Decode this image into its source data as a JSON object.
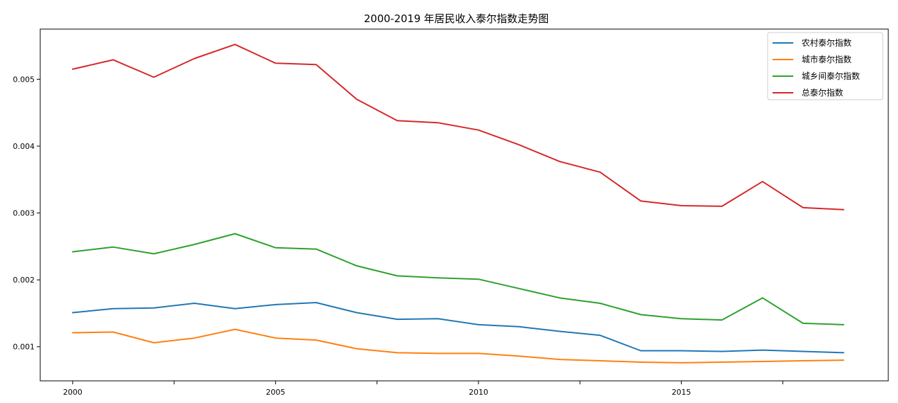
{
  "chart_data": {
    "type": "line",
    "title": "2000-2019 年居民收入泰尔指数走势图",
    "xlabel": "",
    "ylabel": "",
    "x": [
      2000,
      2001,
      2002,
      2003,
      2004,
      2005,
      2006,
      2007,
      2008,
      2009,
      2010,
      2011,
      2012,
      2013,
      2014,
      2015,
      2016,
      2017,
      2018,
      2019
    ],
    "xlim": [
      1999.2,
      2020.1
    ],
    "ylim": [
      0.00049,
      0.00575
    ],
    "xticks": [
      2000,
      2005,
      2010,
      2015
    ],
    "xtick_labels": [
      "2000",
      "2005",
      "2010",
      "2015"
    ],
    "xminor_ticks": [
      2002.5,
      2007.5,
      2012.5,
      2017.5
    ],
    "yticks": [
      0.001,
      0.002,
      0.003,
      0.004,
      0.005
    ],
    "ytick_labels": [
      "0.001",
      "0.002",
      "0.003",
      "0.004",
      "0.005"
    ],
    "grid": false,
    "legend_position": "top-right",
    "series": [
      {
        "name": "农村泰尔指数",
        "color": "#1f77b4",
        "values": [
          0.00151,
          0.00157,
          0.00158,
          0.00165,
          0.00157,
          0.00163,
          0.00166,
          0.00151,
          0.00141,
          0.00142,
          0.00133,
          0.0013,
          0.00123,
          0.00117,
          0.00094,
          0.00094,
          0.00093,
          0.00095,
          0.00093,
          0.00091
        ]
      },
      {
        "name": "城市泰尔指数",
        "color": "#ff7f0e",
        "values": [
          0.00121,
          0.00122,
          0.00106,
          0.00113,
          0.00126,
          0.00113,
          0.0011,
          0.00097,
          0.00091,
          0.0009,
          0.0009,
          0.00086,
          0.00081,
          0.00079,
          0.00077,
          0.00076,
          0.00077,
          0.00078,
          0.00079,
          0.0008
        ]
      },
      {
        "name": "城乡间泰尔指数",
        "color": "#2ca02c",
        "values": [
          0.00242,
          0.00249,
          0.00239,
          0.00253,
          0.00269,
          0.00248,
          0.00246,
          0.00221,
          0.00206,
          0.00203,
          0.00201,
          0.00187,
          0.00173,
          0.00165,
          0.00148,
          0.00142,
          0.0014,
          0.00173,
          0.00135,
          0.00133
        ]
      },
      {
        "name": "总泰尔指数",
        "color": "#d62728",
        "values": [
          0.00515,
          0.00529,
          0.00503,
          0.00531,
          0.00552,
          0.00524,
          0.00522,
          0.0047,
          0.00438,
          0.00435,
          0.00424,
          0.00402,
          0.00377,
          0.00361,
          0.00318,
          0.00311,
          0.0031,
          0.00347,
          0.00308,
          0.00305
        ]
      }
    ]
  }
}
